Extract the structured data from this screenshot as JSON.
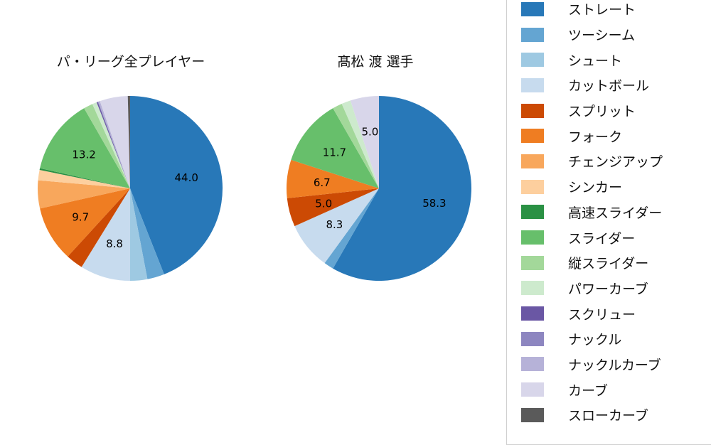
{
  "page": {
    "background": "#ffffff"
  },
  "legend": {
    "items": [
      {
        "label": "ストレート",
        "color": "#2878b8"
      },
      {
        "label": "ツーシーム",
        "color": "#64a5d2"
      },
      {
        "label": "シュート",
        "color": "#9ec9e2"
      },
      {
        "label": "カットボール",
        "color": "#c7dbee"
      },
      {
        "label": "スプリット",
        "color": "#cc4a04"
      },
      {
        "label": "フォーク",
        "color": "#ef7d22"
      },
      {
        "label": "チェンジアップ",
        "color": "#f8a75c"
      },
      {
        "label": "シンカー",
        "color": "#fdcf9e"
      },
      {
        "label": "高速スライダー",
        "color": "#2a9144"
      },
      {
        "label": "スライダー",
        "color": "#67bf6b"
      },
      {
        "label": "縦スライダー",
        "color": "#a3d89a"
      },
      {
        "label": "パワーカーブ",
        "color": "#cdeacd"
      },
      {
        "label": "スクリュー",
        "color": "#6a57a4"
      },
      {
        "label": "ナックル",
        "color": "#8d86c0"
      },
      {
        "label": "ナックルカーブ",
        "color": "#b6b2d8"
      },
      {
        "label": "カーブ",
        "color": "#d8d6ea"
      },
      {
        "label": "スローカーブ",
        "color": "#5a5a5a"
      }
    ]
  },
  "chart_data": [
    {
      "type": "pie",
      "title": "パ・リーグ全プレイヤー",
      "start_angle": "top",
      "direction": "clockwise",
      "label_threshold": 5.0,
      "labeled_values": {
        "ストレート": 44.0,
        "カットボール": 8.8,
        "フォーク": 9.7,
        "スライダー": 13.2
      },
      "categories": [
        "ストレート",
        "ツーシーム",
        "シュート",
        "カットボール",
        "スプリット",
        "フォーク",
        "チェンジアップ",
        "シンカー",
        "高速スライダー",
        "スライダー",
        "縦スライダー",
        "パワーカーブ",
        "スクリュー",
        "ナックル",
        "ナックルカーブ",
        "カーブ",
        "スローカーブ"
      ],
      "values": [
        44.0,
        3.0,
        3.0,
        8.8,
        3.0,
        9.7,
        4.9,
        1.8,
        0.3,
        13.2,
        1.6,
        0.8,
        0.2,
        0.1,
        0.3,
        4.9,
        0.4
      ]
    },
    {
      "type": "pie",
      "title": "髙松 渡 選手",
      "start_angle": "top",
      "direction": "clockwise",
      "label_threshold": 5.0,
      "labeled_values": {
        "ストレート": 58.3,
        "カットボール": 8.3,
        "スプリット": 5.0,
        "フォーク": 6.7,
        "スライダー": 11.7,
        "カーブ": 5.0
      },
      "categories": [
        "ストレート",
        "ツーシーム",
        "シュート",
        "カットボール",
        "スプリット",
        "フォーク",
        "チェンジアップ",
        "シンカー",
        "高速スライダー",
        "スライダー",
        "縦スライダー",
        "パワーカーブ",
        "スクリュー",
        "ナックル",
        "ナックルカーブ",
        "カーブ",
        "スローカーブ"
      ],
      "values": [
        58.3,
        1.7,
        0,
        8.3,
        5.0,
        6.7,
        0,
        0,
        0,
        11.7,
        1.7,
        1.6,
        0,
        0,
        0,
        5.0,
        0
      ]
    }
  ]
}
